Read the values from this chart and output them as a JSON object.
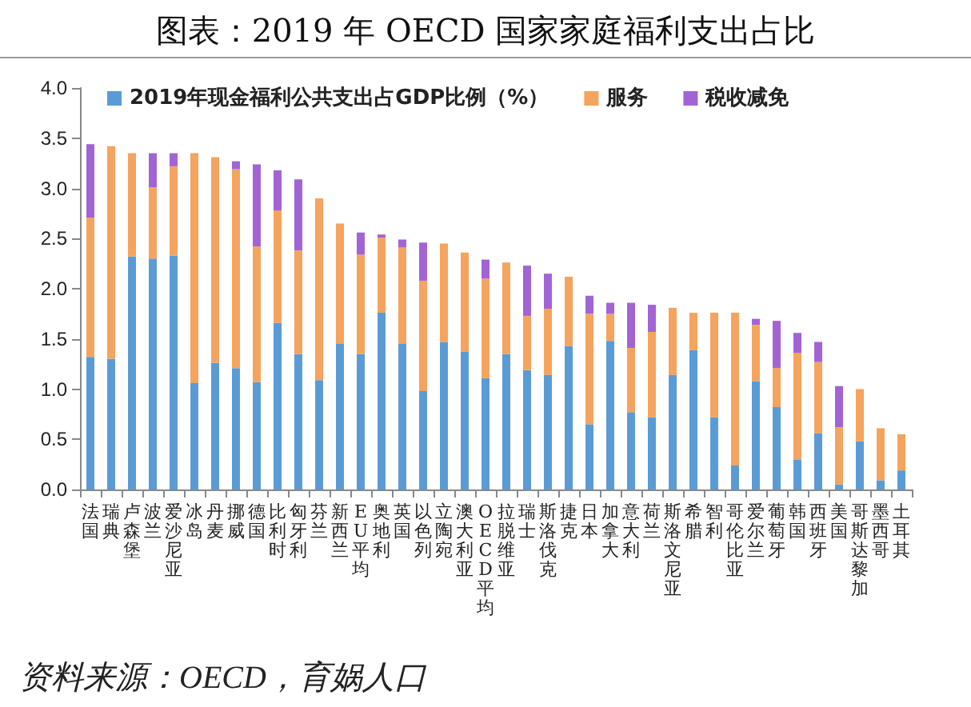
{
  "chart_data": {
    "type": "bar",
    "stacked": true,
    "title": "图表：2019 年 OECD 国家家庭福利支出占比",
    "annotations": [
      "资料来源：OECD，育娲人口"
    ],
    "categories": [
      "法国",
      "瑞典",
      "卢森堡",
      "波兰",
      "爱沙尼亚",
      "冰岛",
      "丹麦",
      "挪威",
      "德国",
      "比利时",
      "匈牙利",
      "芬兰",
      "新西兰",
      "EU平均",
      "奥地利",
      "英国",
      "以色列",
      "立陶宛",
      "澳大利亚",
      "OECD平均",
      "拉脱维亚",
      "瑞士",
      "斯洛伐克",
      "捷克",
      "日本",
      "加拿大",
      "意大利",
      "荷兰",
      "斯洛文尼亚",
      "希腊",
      "智利",
      "哥伦比亚",
      "爱尔兰",
      "葡萄牙",
      "韩国",
      "西班牙",
      "美国",
      "哥斯达黎加",
      "墨西哥",
      "土耳其"
    ],
    "series": [
      {
        "name": "2019年现金福利公共支出占GDP比例（%）",
        "color": "#5b9bd5",
        "values": [
          1.32,
          1.3,
          2.32,
          2.3,
          2.33,
          1.06,
          1.26,
          1.21,
          1.07,
          1.66,
          1.35,
          1.09,
          1.45,
          1.35,
          1.76,
          1.45,
          0.98,
          1.47,
          1.37,
          1.11,
          1.35,
          1.19,
          1.14,
          1.43,
          0.65,
          1.48,
          0.77,
          0.72,
          1.14,
          1.39,
          0.72,
          0.24,
          1.08,
          0.82,
          0.3,
          0.56,
          0.05,
          0.48,
          0.09,
          0.19
        ]
      },
      {
        "name": "服务",
        "color": "#f4a45e",
        "values": [
          1.39,
          2.12,
          1.03,
          0.71,
          0.89,
          2.29,
          2.05,
          1.98,
          1.35,
          1.12,
          1.03,
          1.81,
          1.2,
          0.99,
          0.75,
          0.96,
          1.1,
          0.98,
          0.99,
          0.99,
          0.91,
          0.54,
          0.66,
          0.69,
          1.1,
          0.27,
          0.64,
          0.85,
          0.67,
          0.37,
          1.04,
          1.52,
          0.56,
          0.39,
          1.06,
          0.71,
          0.57,
          0.52,
          0.52,
          0.36
        ]
      },
      {
        "name": "税收减免",
        "color": "#a264d4",
        "values": [
          0.73,
          null,
          null,
          0.34,
          0.13,
          null,
          null,
          0.08,
          0.82,
          0.4,
          0.71,
          null,
          null,
          0.22,
          0.03,
          0.08,
          0.38,
          null,
          null,
          0.19,
          null,
          0.5,
          0.35,
          null,
          0.18,
          0.11,
          0.45,
          0.27,
          null,
          null,
          null,
          null,
          0.06,
          0.47,
          0.2,
          0.2,
          0.41,
          null,
          null,
          null
        ]
      }
    ],
    "ylim": [
      0,
      4
    ],
    "yticks": [
      {
        "value": 0,
        "label": "0.0"
      },
      {
        "value": 0.5,
        "label": "0.5"
      },
      {
        "value": 1,
        "label": "1.0"
      },
      {
        "value": 1.5,
        "label": "1.5"
      },
      {
        "value": 2,
        "label": "2.0"
      },
      {
        "value": 2.5,
        "label": "2.5"
      },
      {
        "value": 3,
        "label": "3.0"
      },
      {
        "value": 3.5,
        "label": "3.5"
      },
      {
        "value": 4,
        "label": "4.0"
      }
    ],
    "grid": false,
    "legend": "top"
  }
}
